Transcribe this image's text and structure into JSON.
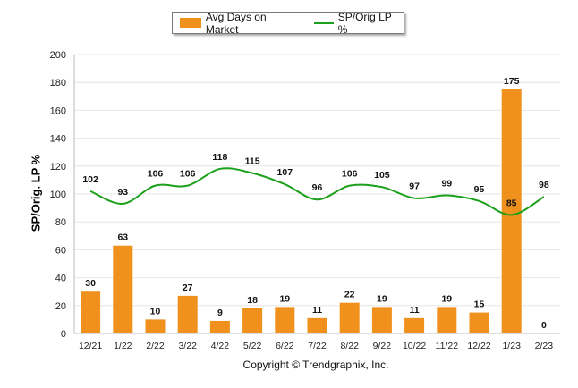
{
  "legend": {
    "bar_label": "Avg Days on Market",
    "line_label": "SP/Orig LP %"
  },
  "footer": "Copyright © Trendgraphix, Inc.",
  "chart_data": {
    "type": "bar",
    "categories": [
      "12/21",
      "1/22",
      "2/22",
      "3/22",
      "4/22",
      "5/22",
      "6/22",
      "7/22",
      "8/22",
      "9/22",
      "10/22",
      "11/22",
      "12/22",
      "1/23",
      "2/23"
    ],
    "series": [
      {
        "name": "Avg Days on Market",
        "type": "bar",
        "color": "#f0901d",
        "values": [
          30,
          63,
          10,
          27,
          9,
          18,
          19,
          11,
          22,
          19,
          11,
          19,
          15,
          175,
          0
        ]
      },
      {
        "name": "SP/Orig LP %",
        "type": "line",
        "color": "#1aa01a",
        "values": [
          102,
          93,
          106,
          106,
          118,
          115,
          107,
          96,
          106,
          105,
          97,
          99,
          95,
          85,
          98
        ]
      }
    ],
    "ylabel": "SP/Orig. LP %",
    "xlabel": "",
    "ylim": [
      0,
      200
    ],
    "yticks": [
      0,
      20,
      40,
      60,
      80,
      100,
      120,
      140,
      160,
      180,
      200
    ],
    "grid": true,
    "legend_position": "top"
  }
}
